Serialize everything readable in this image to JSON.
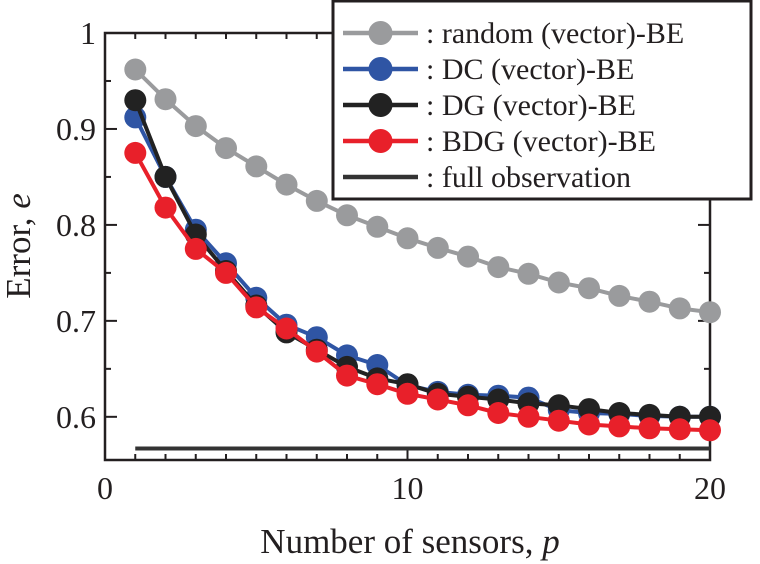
{
  "chart_data": {
    "type": "line",
    "xlabel": "Number of sensors, ",
    "xlabel_var": "p",
    "ylabel": "Error, ",
    "ylabel_var": "e",
    "xlim": [
      0,
      20
    ],
    "ylim": [
      0.555,
      1.0
    ],
    "xticks": [
      0,
      10,
      20
    ],
    "xtick_labels": [
      "0",
      "10",
      "20"
    ],
    "yticks": [
      0.6,
      0.7,
      0.8,
      0.9,
      1.0
    ],
    "ytick_labels": [
      "0.6",
      "0.7",
      "0.8",
      "0.9",
      "1"
    ],
    "grid": false,
    "legend_position": "top-right",
    "x": [
      1,
      2,
      3,
      4,
      5,
      6,
      7,
      8,
      9,
      10,
      11,
      12,
      13,
      14,
      15,
      16,
      17,
      18,
      19,
      20
    ],
    "series": [
      {
        "name": ": random (vector)-BE",
        "color": "#9a9b9d",
        "values": [
          0.962,
          0.931,
          0.903,
          0.88,
          0.861,
          0.842,
          0.825,
          0.81,
          0.798,
          0.786,
          0.776,
          0.767,
          0.756,
          0.749,
          0.74,
          0.734,
          0.726,
          0.72,
          0.713,
          0.709
        ]
      },
      {
        "name": ": DC (vector)-BE",
        "color": "#2f55a4",
        "values": [
          0.912,
          0.85,
          0.795,
          0.76,
          0.724,
          0.696,
          0.683,
          0.664,
          0.654,
          0.633,
          0.626,
          0.623,
          0.622,
          0.62,
          0.607,
          0.604,
          0.603,
          0.601,
          0.6,
          0.6
        ]
      },
      {
        "name": ": DG (vector)-BE",
        "color": "#222222",
        "values": [
          0.93,
          0.85,
          0.79,
          0.752,
          0.716,
          0.688,
          0.67,
          0.652,
          0.64,
          0.634,
          0.624,
          0.621,
          0.618,
          0.614,
          0.612,
          0.608,
          0.604,
          0.602,
          0.6,
          0.6
        ]
      },
      {
        "name": ": BDG (vector)-BE",
        "color": "#e8202a",
        "values": [
          0.875,
          0.818,
          0.775,
          0.75,
          0.714,
          0.692,
          0.668,
          0.643,
          0.634,
          0.624,
          0.618,
          0.612,
          0.604,
          0.6,
          0.596,
          0.592,
          0.59,
          0.588,
          0.587,
          0.586
        ]
      },
      {
        "name": ": full observation",
        "color": "#333333",
        "type": "hline",
        "x_range": [
          1,
          20
        ],
        "value": 0.567
      }
    ]
  }
}
